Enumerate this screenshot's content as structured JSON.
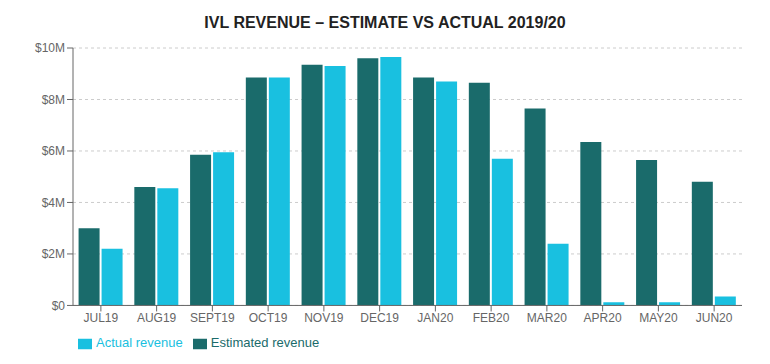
{
  "chart_data": {
    "type": "bar",
    "title": "IVL REVENUE – ESTIMATE VS ACTUAL 2019/20",
    "categories": [
      "JUL19",
      "AUG19",
      "SEPT19",
      "OCT19",
      "NOV19",
      "DEC19",
      "JAN20",
      "FEB20",
      "MAR20",
      "APR20",
      "MAY20",
      "JUN20"
    ],
    "series": [
      {
        "name": "Estimated revenue",
        "color": "#1a6b6b",
        "values": [
          3.0,
          4.6,
          5.85,
          8.85,
          9.35,
          9.6,
          8.85,
          8.65,
          7.65,
          6.35,
          5.65,
          4.8
        ]
      },
      {
        "name": "Actual revenue",
        "color": "#19c0e0",
        "values": [
          2.2,
          4.55,
          5.95,
          8.85,
          9.3,
          9.65,
          8.7,
          5.7,
          2.4,
          0.12,
          0.12,
          0.35
        ]
      }
    ],
    "ylim": [
      0,
      10
    ],
    "yticks": [
      {
        "value": 0,
        "label": "$0"
      },
      {
        "value": 2,
        "label": "$2M"
      },
      {
        "value": 4,
        "label": "$4M"
      },
      {
        "value": 6,
        "label": "$6M"
      },
      {
        "value": 8,
        "label": "$8M"
      },
      {
        "value": 10,
        "label": "$10M"
      }
    ],
    "grid": true,
    "legend": "bottom left"
  }
}
